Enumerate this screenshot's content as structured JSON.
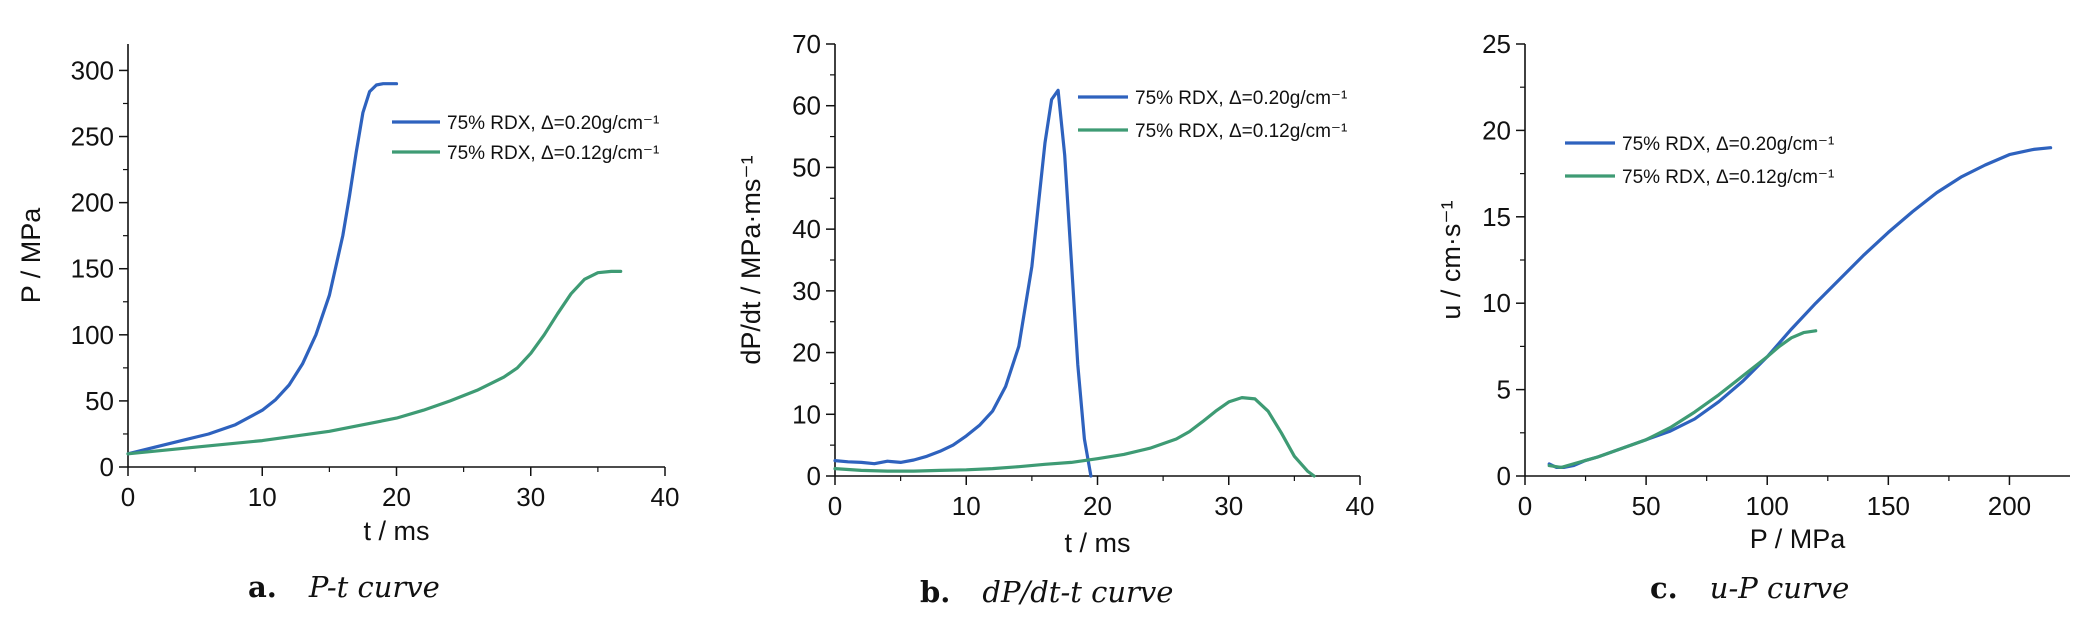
{
  "figure": {
    "captions": [
      {
        "tag": "a.",
        "text": "P-t curve"
      },
      {
        "tag": "b.",
        "text": "dP/dt-t curve"
      },
      {
        "tag": "c.",
        "text": "u-P curve"
      }
    ]
  },
  "colors": {
    "series_1": "#2e62be",
    "series_2": "#3e9b74"
  },
  "chart_data": [
    {
      "type": "line",
      "xlabel": "t / ms",
      "ylabel": "P / MPa",
      "xlim": [
        0,
        40
      ],
      "ylim": [
        0,
        320
      ],
      "xticks": [
        "0",
        "10",
        "20",
        "30",
        "40"
      ],
      "yticks": [
        "0",
        "50",
        "100",
        "150",
        "200",
        "250",
        "300"
      ],
      "legend_position": "top-right",
      "series": [
        {
          "name": "75% RDX, Δ=0.20g/cm⁻¹",
          "x": [
            0,
            2,
            4,
            6,
            8,
            10,
            11,
            12,
            13,
            14,
            15,
            16,
            16.5,
            17,
            17.5,
            18,
            18.5,
            19,
            19.5,
            20
          ],
          "y": [
            10,
            15,
            20,
            25,
            32,
            43,
            51,
            62,
            78,
            100,
            130,
            175,
            205,
            238,
            268,
            284,
            289,
            290,
            290,
            290
          ]
        },
        {
          "name": "75% RDX, Δ=0.12g/cm⁻¹",
          "x": [
            0,
            5,
            10,
            15,
            20,
            22,
            24,
            26,
            28,
            29,
            30,
            31,
            32,
            33,
            34,
            35,
            36,
            36.7
          ],
          "y": [
            10,
            15,
            20,
            27,
            37,
            43,
            50,
            58,
            68,
            75,
            86,
            100,
            116,
            131,
            142,
            147,
            148,
            148
          ]
        }
      ]
    },
    {
      "type": "line",
      "xlabel": "t / ms",
      "ylabel": "dP/dt / MPa·ms⁻¹",
      "xlim": [
        0,
        40
      ],
      "ylim": [
        0,
        70
      ],
      "xticks": [
        "0",
        "10",
        "20",
        "30",
        "40"
      ],
      "yticks": [
        "0",
        "10",
        "20",
        "30",
        "40",
        "50",
        "60",
        "70"
      ],
      "legend_position": "top-right",
      "series": [
        {
          "name": "75% RDX, Δ=0.20g/cm⁻¹",
          "x": [
            0,
            1,
            2,
            3,
            4,
            5,
            6,
            7,
            8,
            9,
            10,
            11,
            12,
            13,
            14,
            15,
            15.5,
            16,
            16.5,
            17,
            17.5,
            18,
            18.5,
            19,
            19.5
          ],
          "y": [
            2.5,
            2.3,
            2.2,
            2.0,
            2.4,
            2.2,
            2.6,
            3.2,
            4.0,
            5.0,
            6.5,
            8.2,
            10.5,
            14.5,
            21,
            34,
            44,
            54,
            61,
            62.5,
            52,
            35,
            18,
            6,
            0
          ]
        },
        {
          "name": "75% RDX, Δ=0.12g/cm⁻¹",
          "x": [
            0,
            2,
            4,
            6,
            8,
            10,
            12,
            14,
            16,
            18,
            20,
            22,
            24,
            26,
            27,
            28,
            29,
            30,
            31,
            32,
            33,
            34,
            35,
            36,
            36.5
          ],
          "y": [
            1.2,
            0.9,
            0.8,
            0.8,
            0.9,
            1.0,
            1.2,
            1.5,
            1.9,
            2.2,
            2.8,
            3.5,
            4.5,
            6.0,
            7.2,
            8.8,
            10.5,
            12.0,
            12.7,
            12.5,
            10.5,
            7.0,
            3.2,
            0.8,
            0
          ]
        }
      ]
    },
    {
      "type": "line",
      "xlabel": "P / MPa",
      "ylabel": "u / cm·s⁻¹",
      "xlim": [
        0,
        225
      ],
      "ylim": [
        0,
        25
      ],
      "xticks": [
        "0",
        "50",
        "100",
        "150",
        "200"
      ],
      "yticks": [
        "0",
        "5",
        "10",
        "15",
        "20",
        "25"
      ],
      "legend_position": "top-left",
      "series": [
        {
          "name": "75% RDX, Δ=0.20g/cm⁻¹",
          "x": [
            10,
            13,
            16,
            20,
            25,
            30,
            40,
            50,
            60,
            70,
            80,
            90,
            100,
            110,
            120,
            130,
            140,
            150,
            160,
            170,
            180,
            190,
            200,
            210,
            217
          ],
          "y": [
            0.7,
            0.5,
            0.5,
            0.6,
            0.9,
            1.1,
            1.6,
            2.1,
            2.6,
            3.3,
            4.3,
            5.5,
            6.9,
            8.5,
            10.0,
            11.4,
            12.8,
            14.1,
            15.3,
            16.4,
            17.3,
            18.0,
            18.6,
            18.9,
            19.0
          ]
        },
        {
          "name": "75% RDX, Δ=0.12g/cm⁻¹",
          "x": [
            10,
            15,
            20,
            25,
            30,
            40,
            50,
            60,
            70,
            80,
            90,
            100,
            105,
            110,
            115,
            120
          ],
          "y": [
            0.6,
            0.5,
            0.7,
            0.9,
            1.1,
            1.6,
            2.1,
            2.8,
            3.7,
            4.7,
            5.8,
            6.9,
            7.5,
            8.0,
            8.3,
            8.4
          ]
        }
      ]
    }
  ]
}
